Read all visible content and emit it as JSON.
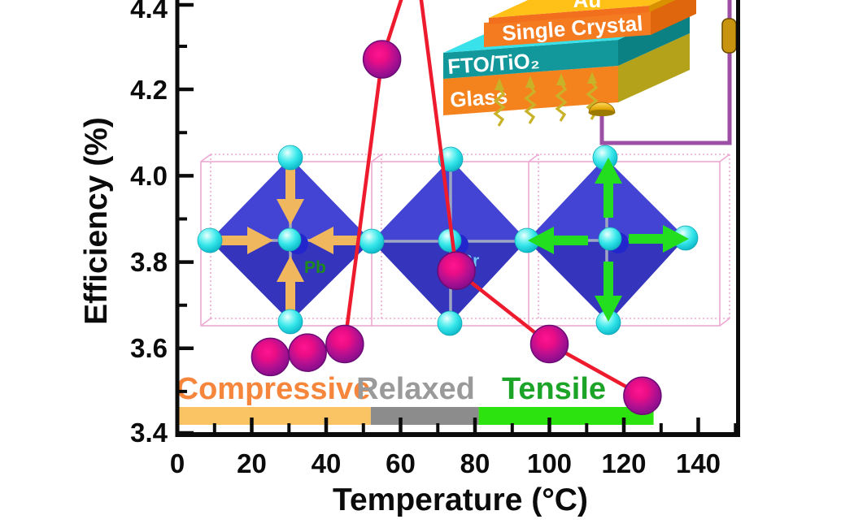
{
  "chart_data": {
    "type": "line",
    "x": [
      25,
      35,
      45,
      55,
      75,
      100,
      125
    ],
    "series": [
      {
        "name": "Efficiency",
        "values": [
          3.58,
          3.59,
          3.61,
          4.27,
          3.78,
          3.61,
          3.49
        ]
      }
    ],
    "title": "",
    "xlabel": "Temperature (°C)",
    "ylabel": "Efficiency (%)",
    "xlim": [
      0,
      150
    ],
    "ylim": [
      3.4,
      4.42
    ],
    "x_tick_labels": [
      "0",
      "20",
      "40",
      "60",
      "80",
      "100",
      "120",
      "140"
    ],
    "y_tick_labels": [
      "4.4",
      "4.2",
      "4.0",
      "3.8",
      "3.6",
      "3.4"
    ],
    "grid": false,
    "legend_position": "none",
    "line_color": "#ee1b2e",
    "marker_color": "#8f0f8f",
    "offscreen_peak_x": 64,
    "note": "peak between 55 and 75 °C rises above the visible axis top (clipped)"
  },
  "strain_regions": [
    {
      "label": "Compressive",
      "text_color": "#f5863b",
      "bar_color": "#fac465",
      "from_c": 0.5,
      "to_c": 52
    },
    {
      "label": "Relaxed",
      "text_color": "#9a9a9a",
      "bar_color": "#8c8c8c",
      "from_c": 52,
      "to_c": 81
    },
    {
      "label": "Tensile",
      "text_color": "#1ca428",
      "bar_color": "#2ce30f",
      "from_c": 81,
      "to_c": 128
    }
  ],
  "device_inset": {
    "layer_labels": [
      "Au",
      "Single Crystal",
      "FTO/TiO₂",
      "Glass"
    ],
    "wire_color": "#9c50a5",
    "light_source": "photon-squiggles"
  },
  "unit_cells": {
    "cells": [
      {
        "strain": "compressive",
        "atom_label": "Pb",
        "arrow_color": "#f1b75e"
      },
      {
        "strain": "relaxed",
        "atom_label": "Br",
        "arrow_color": ""
      },
      {
        "strain": "tensile",
        "atom_label": "",
        "arrow_color": "#23dd1f"
      }
    ]
  }
}
